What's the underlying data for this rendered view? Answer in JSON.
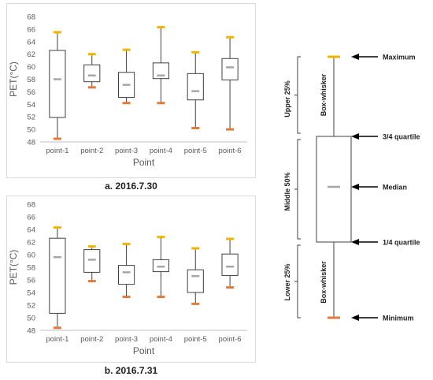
{
  "chart_data": [
    {
      "type": "box",
      "caption": "a. 2016.7.30",
      "xlabel": "Point",
      "ylabel": "PET(°C)",
      "ylim": [
        48,
        68
      ],
      "yticks": [
        48,
        50,
        52,
        54,
        56,
        58,
        60,
        62,
        64,
        66,
        68
      ],
      "grid": false,
      "categories": [
        "point-1",
        "point-2",
        "point-3",
        "point-4",
        "point-5",
        "point-6"
      ],
      "boxes": [
        {
          "min": 48.5,
          "q1": 51.9,
          "median": 58.0,
          "q3": 62.6,
          "max": 65.5
        },
        {
          "min": 56.7,
          "q1": 57.6,
          "median": 58.6,
          "q3": 60.3,
          "max": 62.0
        },
        {
          "min": 54.2,
          "q1": 55.1,
          "median": 57.1,
          "q3": 59.1,
          "max": 62.7
        },
        {
          "min": 54.2,
          "q1": 58.1,
          "median": 58.6,
          "q3": 60.6,
          "max": 66.3
        },
        {
          "min": 50.2,
          "q1": 54.7,
          "median": 56.1,
          "q3": 58.9,
          "max": 62.3
        },
        {
          "min": 50.0,
          "q1": 57.9,
          "median": 59.9,
          "q3": 61.3,
          "max": 64.7
        }
      ]
    },
    {
      "type": "box",
      "caption": "b. 2016.7.31",
      "xlabel": "Point",
      "ylabel": "PET(°C)",
      "ylim": [
        48,
        68
      ],
      "yticks": [
        48,
        50,
        52,
        54,
        56,
        58,
        60,
        62,
        64,
        66,
        68
      ],
      "grid": false,
      "categories": [
        "point-1",
        "point-2",
        "point-3",
        "point-4",
        "point-5",
        "point-6"
      ],
      "boxes": [
        {
          "min": 48.4,
          "q1": 50.7,
          "median": 59.6,
          "q3": 62.6,
          "max": 64.3
        },
        {
          "min": 55.8,
          "q1": 57.2,
          "median": 59.2,
          "q3": 60.8,
          "max": 61.3
        },
        {
          "min": 53.3,
          "q1": 55.3,
          "median": 57.2,
          "q3": 58.3,
          "max": 61.7
        },
        {
          "min": 53.3,
          "q1": 57.3,
          "median": 58.1,
          "q3": 59.2,
          "max": 62.8
        },
        {
          "min": 52.2,
          "q1": 54.0,
          "median": 56.6,
          "q3": 57.6,
          "max": 61.0
        },
        {
          "min": 54.8,
          "q1": 56.7,
          "median": 58.1,
          "q3": 60.1,
          "max": 62.5
        }
      ]
    }
  ],
  "legend": {
    "maximum": "Maximum",
    "q3": "3/4 quartile",
    "median": "Median",
    "q1": "1/4 quartile",
    "minimum": "Minimum",
    "upper": "Upper 25%",
    "middle": "Middle 50%",
    "lower": "Lower 25%",
    "whisker_top": "Box-whisker",
    "whisker_bottom": "Box-whisker"
  },
  "colors": {
    "max_cap": "#f2b400",
    "min_cap": "#e07b3a",
    "median": "#a6a6a6",
    "box_stroke": "#404040",
    "axis_text": "#595959"
  }
}
